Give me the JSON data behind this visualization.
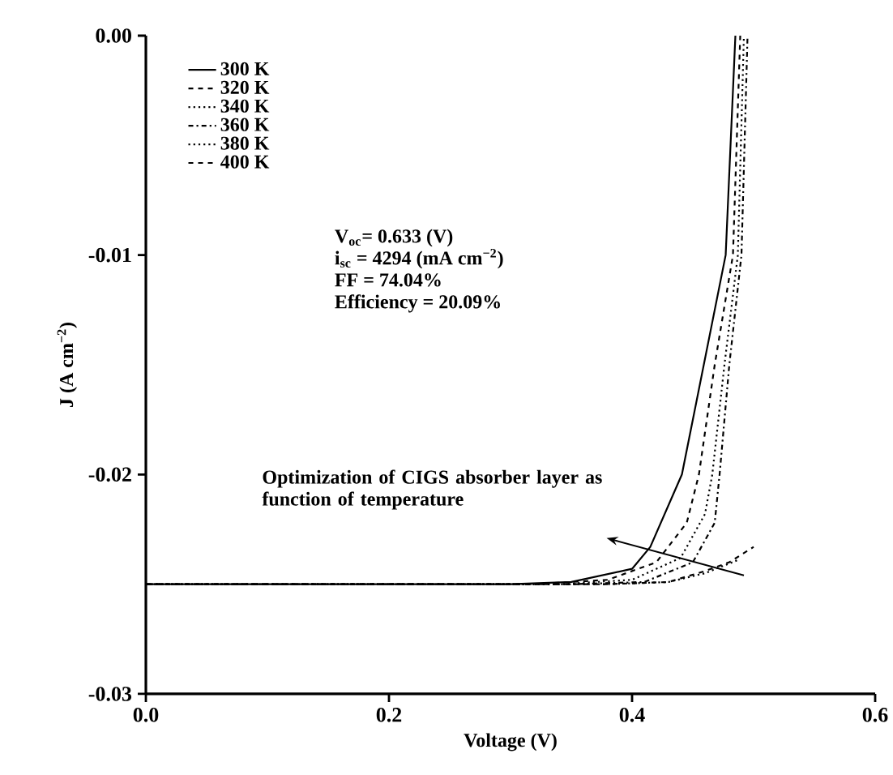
{
  "chart_data": {
    "type": "line",
    "xlabel": "Voltage (V)",
    "ylabel": "J (A cm$^{−2}$)",
    "xlim": [
      0,
      0.6
    ],
    "ylim": [
      -0.03,
      0
    ],
    "xticks": [
      {
        "value": 0,
        "label": "0.0"
      },
      0.2,
      0.4,
      0.6
    ],
    "yticks": [
      {
        "value": 0,
        "label": "0.00"
      },
      -0.01,
      -0.02,
      -0.03
    ],
    "legend": "top left",
    "grid": false,
    "marker": "none",
    "annotations": [
      "V$_{oc}$= 0.633 (V)",
      "i$_{sc}$ = 4294 (mA cm$^{−2}$)",
      "FF = 74.04%",
      "Efficiency = 20.09%",
      "Optimization of CIGS absorber layer as function of temperature"
    ],
    "series": [
      {
        "name": "300 K",
        "color": "#000000",
        "line_style": "solid",
        "x": [
          0,
          0.3,
          0.35,
          0.4,
          0.415,
          0.441,
          0.459,
          0.477,
          0.485
        ],
        "values": [
          -0.025,
          -0.025,
          -0.0249,
          -0.0243,
          -0.0233,
          -0.02,
          -0.015,
          -0.01,
          0
        ]
      },
      {
        "name": "320 K",
        "color": "#000000",
        "line_style": "dashed",
        "x": [
          0,
          0.32,
          0.38,
          0.42,
          0.445,
          0.455,
          0.468,
          0.483,
          0.489
        ],
        "values": [
          -0.025,
          -0.025,
          -0.0248,
          -0.024,
          -0.0222,
          -0.02,
          -0.015,
          -0.01,
          0
        ]
      },
      {
        "name": "340 K",
        "color": "#000000",
        "line_style": "dotted",
        "x": [
          0,
          0.34,
          0.4,
          0.44,
          0.46,
          0.466,
          0.476,
          0.487,
          0.492
        ],
        "values": [
          -0.025,
          -0.025,
          -0.0248,
          -0.0238,
          -0.0218,
          -0.02,
          -0.015,
          -0.01,
          0
        ]
      },
      {
        "name": "360 K",
        "color": "#000000",
        "line_style": "dashdot",
        "x": [
          0,
          0.35,
          0.41,
          0.45,
          0.468,
          0.472,
          0.48,
          0.49,
          0.495
        ],
        "values": [
          -0.025,
          -0.025,
          -0.0249,
          -0.024,
          -0.0222,
          -0.02,
          -0.015,
          -0.01,
          0
        ]
      },
      {
        "name": "380 K",
        "color": "#000000",
        "line_style": "dotted",
        "x": [
          0,
          0.38,
          0.43,
          0.46,
          0.487
        ],
        "values": [
          -0.025,
          -0.025,
          -0.0249,
          -0.0245,
          -0.0239
        ]
      },
      {
        "name": "400 K",
        "color": "#000000",
        "line_style": "dashed",
        "x": [
          0,
          0.38,
          0.43,
          0.46,
          0.48,
          0.5
        ],
        "values": [
          -0.025,
          -0.025,
          -0.0249,
          -0.0244,
          -0.024,
          -0.0233
        ]
      }
    ]
  }
}
